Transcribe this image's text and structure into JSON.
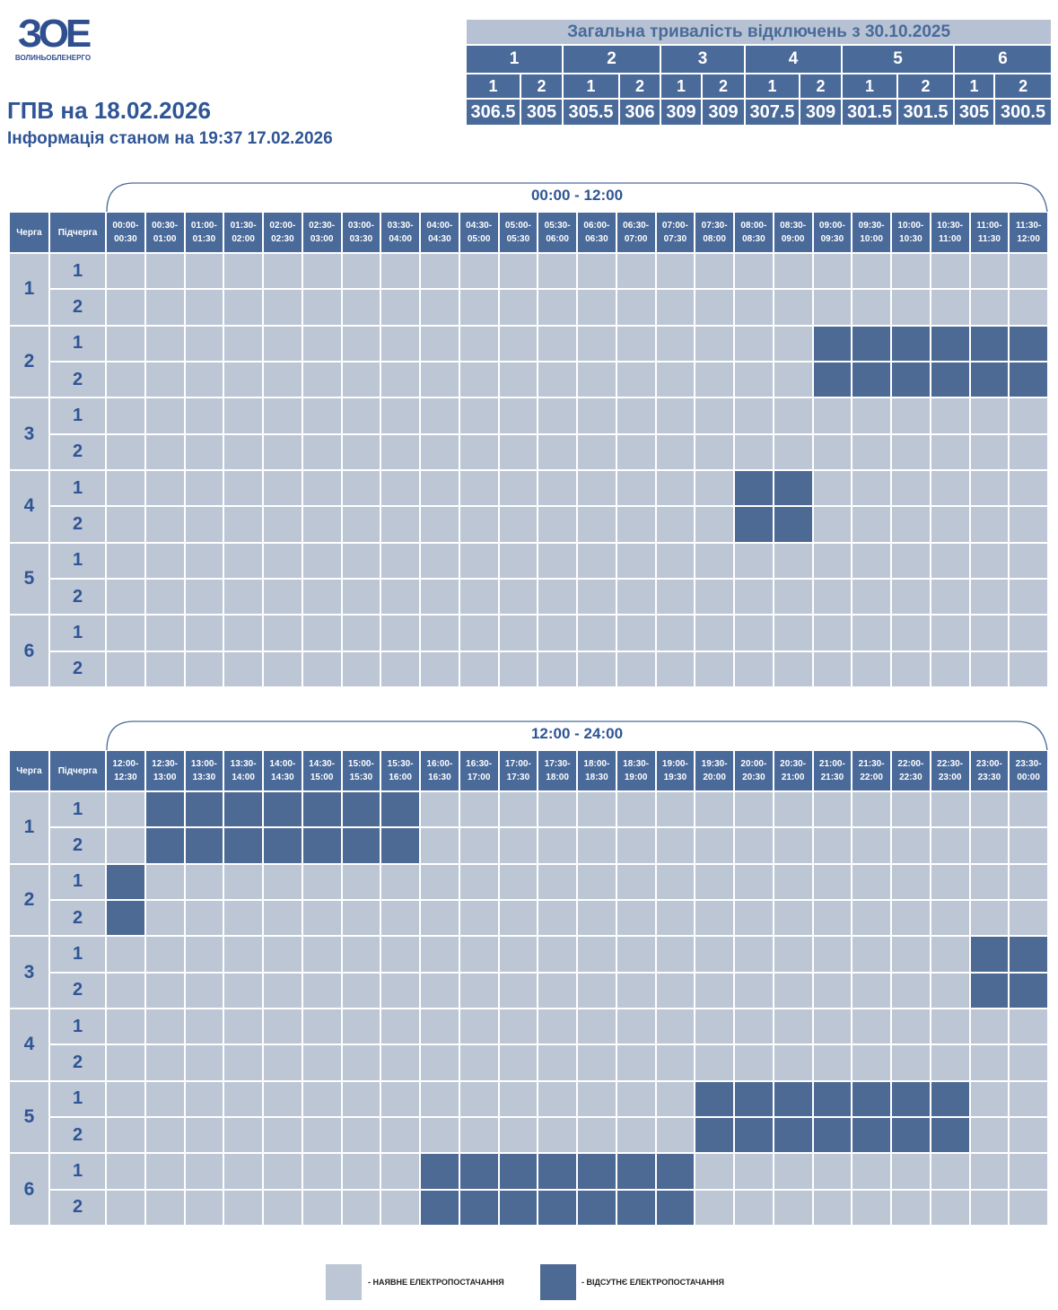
{
  "logo": {
    "mark": "ЗОЕ",
    "name": "ВОЛИНЬОБЛЕНЕРГО"
  },
  "header": {
    "title": "ГПВ на 18.02.2026",
    "subtitle": "Інформація станом на 19:37 17.02.2026"
  },
  "summary": {
    "title": "Загальна тривалість відключень з 30.10.2025",
    "groups": [
      {
        "label": "1",
        "subgroups": [
          "1",
          "2"
        ],
        "values": [
          306.5,
          305
        ]
      },
      {
        "label": "2",
        "subgroups": [
          "1",
          "2"
        ],
        "values": [
          305.5,
          306
        ]
      },
      {
        "label": "3",
        "subgroups": [
          "1",
          "2"
        ],
        "values": [
          309,
          309
        ]
      },
      {
        "label": "4",
        "subgroups": [
          "1",
          "2"
        ],
        "values": [
          307.5,
          309
        ]
      },
      {
        "label": "5",
        "subgroups": [
          "1",
          "2"
        ],
        "values": [
          301.5,
          301.5
        ]
      },
      {
        "label": "6",
        "subgroups": [
          "1",
          "2"
        ],
        "values": [
          305,
          300.5
        ]
      }
    ]
  },
  "tables": [
    {
      "range": "00:00 - 12:00",
      "queue_header": "Черга",
      "subqueue_header": "Підчерга",
      "slots": [
        "00:00-00:30",
        "00:30-01:00",
        "01:00-01:30",
        "01:30-02:00",
        "02:00-02:30",
        "02:30-03:00",
        "03:00-03:30",
        "03:30-04:00",
        "04:00-04:30",
        "04:30-05:00",
        "05:00-05:30",
        "05:30-06:00",
        "06:00-06:30",
        "06:30-07:00",
        "07:00-07:30",
        "07:30-08:00",
        "08:00-08:30",
        "08:30-09:00",
        "09:00-09:30",
        "09:30-10:00",
        "10:00-10:30",
        "10:30-11:00",
        "11:00-11:30",
        "11:30-12:00"
      ],
      "rows": [
        {
          "queue": "1",
          "subqueues": [
            {
              "label": "1",
              "cells": [
                0,
                0,
                0,
                0,
                0,
                0,
                0,
                0,
                0,
                0,
                0,
                0,
                0,
                0,
                0,
                0,
                0,
                0,
                0,
                0,
                0,
                0,
                0,
                0
              ]
            },
            {
              "label": "2",
              "cells": [
                0,
                0,
                0,
                0,
                0,
                0,
                0,
                0,
                0,
                0,
                0,
                0,
                0,
                0,
                0,
                0,
                0,
                0,
                0,
                0,
                0,
                0,
                0,
                0
              ]
            }
          ]
        },
        {
          "queue": "2",
          "subqueues": [
            {
              "label": "1",
              "cells": [
                0,
                0,
                0,
                0,
                0,
                0,
                0,
                0,
                0,
                0,
                0,
                0,
                0,
                0,
                0,
                0,
                0,
                0,
                1,
                1,
                1,
                1,
                1,
                1
              ]
            },
            {
              "label": "2",
              "cells": [
                0,
                0,
                0,
                0,
                0,
                0,
                0,
                0,
                0,
                0,
                0,
                0,
                0,
                0,
                0,
                0,
                0,
                0,
                1,
                1,
                1,
                1,
                1,
                1
              ]
            }
          ]
        },
        {
          "queue": "3",
          "subqueues": [
            {
              "label": "1",
              "cells": [
                0,
                0,
                0,
                0,
                0,
                0,
                0,
                0,
                0,
                0,
                0,
                0,
                0,
                0,
                0,
                0,
                0,
                0,
                0,
                0,
                0,
                0,
                0,
                0
              ]
            },
            {
              "label": "2",
              "cells": [
                0,
                0,
                0,
                0,
                0,
                0,
                0,
                0,
                0,
                0,
                0,
                0,
                0,
                0,
                0,
                0,
                0,
                0,
                0,
                0,
                0,
                0,
                0,
                0
              ]
            }
          ]
        },
        {
          "queue": "4",
          "subqueues": [
            {
              "label": "1",
              "cells": [
                0,
                0,
                0,
                0,
                0,
                0,
                0,
                0,
                0,
                0,
                0,
                0,
                0,
                0,
                0,
                0,
                1,
                1,
                0,
                0,
                0,
                0,
                0,
                0
              ]
            },
            {
              "label": "2",
              "cells": [
                0,
                0,
                0,
                0,
                0,
                0,
                0,
                0,
                0,
                0,
                0,
                0,
                0,
                0,
                0,
                0,
                1,
                1,
                0,
                0,
                0,
                0,
                0,
                0
              ]
            }
          ]
        },
        {
          "queue": "5",
          "subqueues": [
            {
              "label": "1",
              "cells": [
                0,
                0,
                0,
                0,
                0,
                0,
                0,
                0,
                0,
                0,
                0,
                0,
                0,
                0,
                0,
                0,
                0,
                0,
                0,
                0,
                0,
                0,
                0,
                0
              ]
            },
            {
              "label": "2",
              "cells": [
                0,
                0,
                0,
                0,
                0,
                0,
                0,
                0,
                0,
                0,
                0,
                0,
                0,
                0,
                0,
                0,
                0,
                0,
                0,
                0,
                0,
                0,
                0,
                0
              ]
            }
          ]
        },
        {
          "queue": "6",
          "subqueues": [
            {
              "label": "1",
              "cells": [
                0,
                0,
                0,
                0,
                0,
                0,
                0,
                0,
                0,
                0,
                0,
                0,
                0,
                0,
                0,
                0,
                0,
                0,
                0,
                0,
                0,
                0,
                0,
                0
              ]
            },
            {
              "label": "2",
              "cells": [
                0,
                0,
                0,
                0,
                0,
                0,
                0,
                0,
                0,
                0,
                0,
                0,
                0,
                0,
                0,
                0,
                0,
                0,
                0,
                0,
                0,
                0,
                0,
                0
              ]
            }
          ]
        }
      ]
    },
    {
      "range": "12:00 - 24:00",
      "queue_header": "Черга",
      "subqueue_header": "Підчерга",
      "slots": [
        "12:00-12:30",
        "12:30-13:00",
        "13:00-13:30",
        "13:30-14:00",
        "14:00-14:30",
        "14:30-15:00",
        "15:00-15:30",
        "15:30-16:00",
        "16:00-16:30",
        "16:30-17:00",
        "17:00-17:30",
        "17:30-18:00",
        "18:00-18:30",
        "18:30-19:00",
        "19:00-19:30",
        "19:30-20:00",
        "20:00-20:30",
        "20:30-21:00",
        "21:00-21:30",
        "21:30-22:00",
        "22:00-22:30",
        "22:30-23:00",
        "23:00-23:30",
        "23:30-00:00"
      ],
      "rows": [
        {
          "queue": "1",
          "subqueues": [
            {
              "label": "1",
              "cells": [
                0,
                1,
                1,
                1,
                1,
                1,
                1,
                1,
                0,
                0,
                0,
                0,
                0,
                0,
                0,
                0,
                0,
                0,
                0,
                0,
                0,
                0,
                0,
                0
              ]
            },
            {
              "label": "2",
              "cells": [
                0,
                1,
                1,
                1,
                1,
                1,
                1,
                1,
                0,
                0,
                0,
                0,
                0,
                0,
                0,
                0,
                0,
                0,
                0,
                0,
                0,
                0,
                0,
                0
              ]
            }
          ]
        },
        {
          "queue": "2",
          "subqueues": [
            {
              "label": "1",
              "cells": [
                1,
                0,
                0,
                0,
                0,
                0,
                0,
                0,
                0,
                0,
                0,
                0,
                0,
                0,
                0,
                0,
                0,
                0,
                0,
                0,
                0,
                0,
                0,
                0
              ]
            },
            {
              "label": "2",
              "cells": [
                1,
                0,
                0,
                0,
                0,
                0,
                0,
                0,
                0,
                0,
                0,
                0,
                0,
                0,
                0,
                0,
                0,
                0,
                0,
                0,
                0,
                0,
                0,
                0
              ]
            }
          ]
        },
        {
          "queue": "3",
          "subqueues": [
            {
              "label": "1",
              "cells": [
                0,
                0,
                0,
                0,
                0,
                0,
                0,
                0,
                0,
                0,
                0,
                0,
                0,
                0,
                0,
                0,
                0,
                0,
                0,
                0,
                0,
                0,
                1,
                1
              ]
            },
            {
              "label": "2",
              "cells": [
                0,
                0,
                0,
                0,
                0,
                0,
                0,
                0,
                0,
                0,
                0,
                0,
                0,
                0,
                0,
                0,
                0,
                0,
                0,
                0,
                0,
                0,
                1,
                1
              ]
            }
          ]
        },
        {
          "queue": "4",
          "subqueues": [
            {
              "label": "1",
              "cells": [
                0,
                0,
                0,
                0,
                0,
                0,
                0,
                0,
                0,
                0,
                0,
                0,
                0,
                0,
                0,
                0,
                0,
                0,
                0,
                0,
                0,
                0,
                0,
                0
              ]
            },
            {
              "label": "2",
              "cells": [
                0,
                0,
                0,
                0,
                0,
                0,
                0,
                0,
                0,
                0,
                0,
                0,
                0,
                0,
                0,
                0,
                0,
                0,
                0,
                0,
                0,
                0,
                0,
                0
              ]
            }
          ]
        },
        {
          "queue": "5",
          "subqueues": [
            {
              "label": "1",
              "cells": [
                0,
                0,
                0,
                0,
                0,
                0,
                0,
                0,
                0,
                0,
                0,
                0,
                0,
                0,
                0,
                1,
                1,
                1,
                1,
                1,
                1,
                1,
                0,
                0
              ]
            },
            {
              "label": "2",
              "cells": [
                0,
                0,
                0,
                0,
                0,
                0,
                0,
                0,
                0,
                0,
                0,
                0,
                0,
                0,
                0,
                1,
                1,
                1,
                1,
                1,
                1,
                1,
                0,
                0
              ]
            }
          ]
        },
        {
          "queue": "6",
          "subqueues": [
            {
              "label": "1",
              "cells": [
                0,
                0,
                0,
                0,
                0,
                0,
                0,
                0,
                1,
                1,
                1,
                1,
                1,
                1,
                1,
                0,
                0,
                0,
                0,
                0,
                0,
                0,
                0,
                0
              ]
            },
            {
              "label": "2",
              "cells": [
                0,
                0,
                0,
                0,
                0,
                0,
                0,
                0,
                1,
                1,
                1,
                1,
                1,
                1,
                1,
                0,
                0,
                0,
                0,
                0,
                0,
                0,
                0,
                0
              ]
            }
          ]
        }
      ]
    }
  ],
  "legend": {
    "on": "- НАЯВНЕ ЕЛЕКТРОПОСТАЧАННЯ",
    "off": "- ВІДСУТНЄ ЕЛЕКТРОПОСТАЧАННЯ"
  }
}
